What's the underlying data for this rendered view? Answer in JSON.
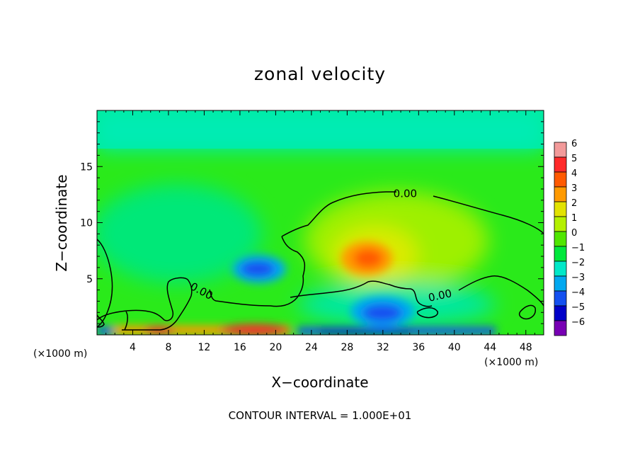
{
  "chart_data": {
    "type": "heatmap",
    "title": "zonal velocity",
    "xlabel": "X−coordinate",
    "ylabel": "Z−coordinate",
    "x_unit_left": "(×1000 m)",
    "x_unit_right": "(×1000 m)",
    "footer": "CONTOUR INTERVAL = 1.000E+01",
    "xlim": [
      0,
      50
    ],
    "ylim": [
      0,
      20
    ],
    "x_ticks": [
      4,
      8,
      12,
      16,
      20,
      24,
      28,
      32,
      36,
      40,
      44,
      48
    ],
    "x_tick_labels": [
      "4",
      "8",
      "12",
      "16",
      "20",
      "24",
      "28",
      "32",
      "36",
      "40",
      "44",
      "48"
    ],
    "y_ticks": [
      5,
      10,
      15
    ],
    "y_tick_labels": [
      "5",
      "10",
      "15"
    ],
    "colorbar": {
      "levels": [
        6,
        5,
        4,
        3,
        2,
        1,
        0,
        -1,
        -2,
        -3,
        -4,
        -5,
        -6
      ],
      "labels": [
        "6",
        "5",
        "4",
        "3",
        "2",
        "1",
        "0",
        "−1",
        "−2",
        "−3",
        "−4",
        "−5",
        "−6"
      ],
      "colors": [
        "#f29a9a",
        "#ff2a2a",
        "#ff5a00",
        "#ff9a00",
        "#e2e200",
        "#b4f000",
        "#50e600",
        "#00e83c",
        "#00e8c8",
        "#00a8f0",
        "#1450f0",
        "#0000c8",
        "#7800b4"
      ]
    },
    "contour_labels": [
      {
        "text": "0.00",
        "x": 34.5,
        "y": 12.6
      },
      {
        "text": "0.00",
        "x": 11.7,
        "y": 3.9
      },
      {
        "text": "0.00",
        "x": 38.4,
        "y": 3.5
      }
    ],
    "features": [
      {
        "kind": "background",
        "value": -1.6
      },
      {
        "kind": "minimum",
        "x": 18.2,
        "z": 5.8,
        "value": -4.5
      },
      {
        "kind": "maximum",
        "x": 30.2,
        "z": 6.8,
        "value": 3.5
      },
      {
        "kind": "minimum",
        "x": 32.0,
        "z": 2.0,
        "value": -3.6
      },
      {
        "kind": "maximum",
        "x": 18.5,
        "z": 0.3,
        "value": 4.0
      },
      {
        "kind": "maximum",
        "x": 6.5,
        "z": 0.3,
        "value": 3.5
      },
      {
        "kind": "minimum",
        "x": 28.0,
        "z": 0.2,
        "value": -5.0
      }
    ]
  }
}
